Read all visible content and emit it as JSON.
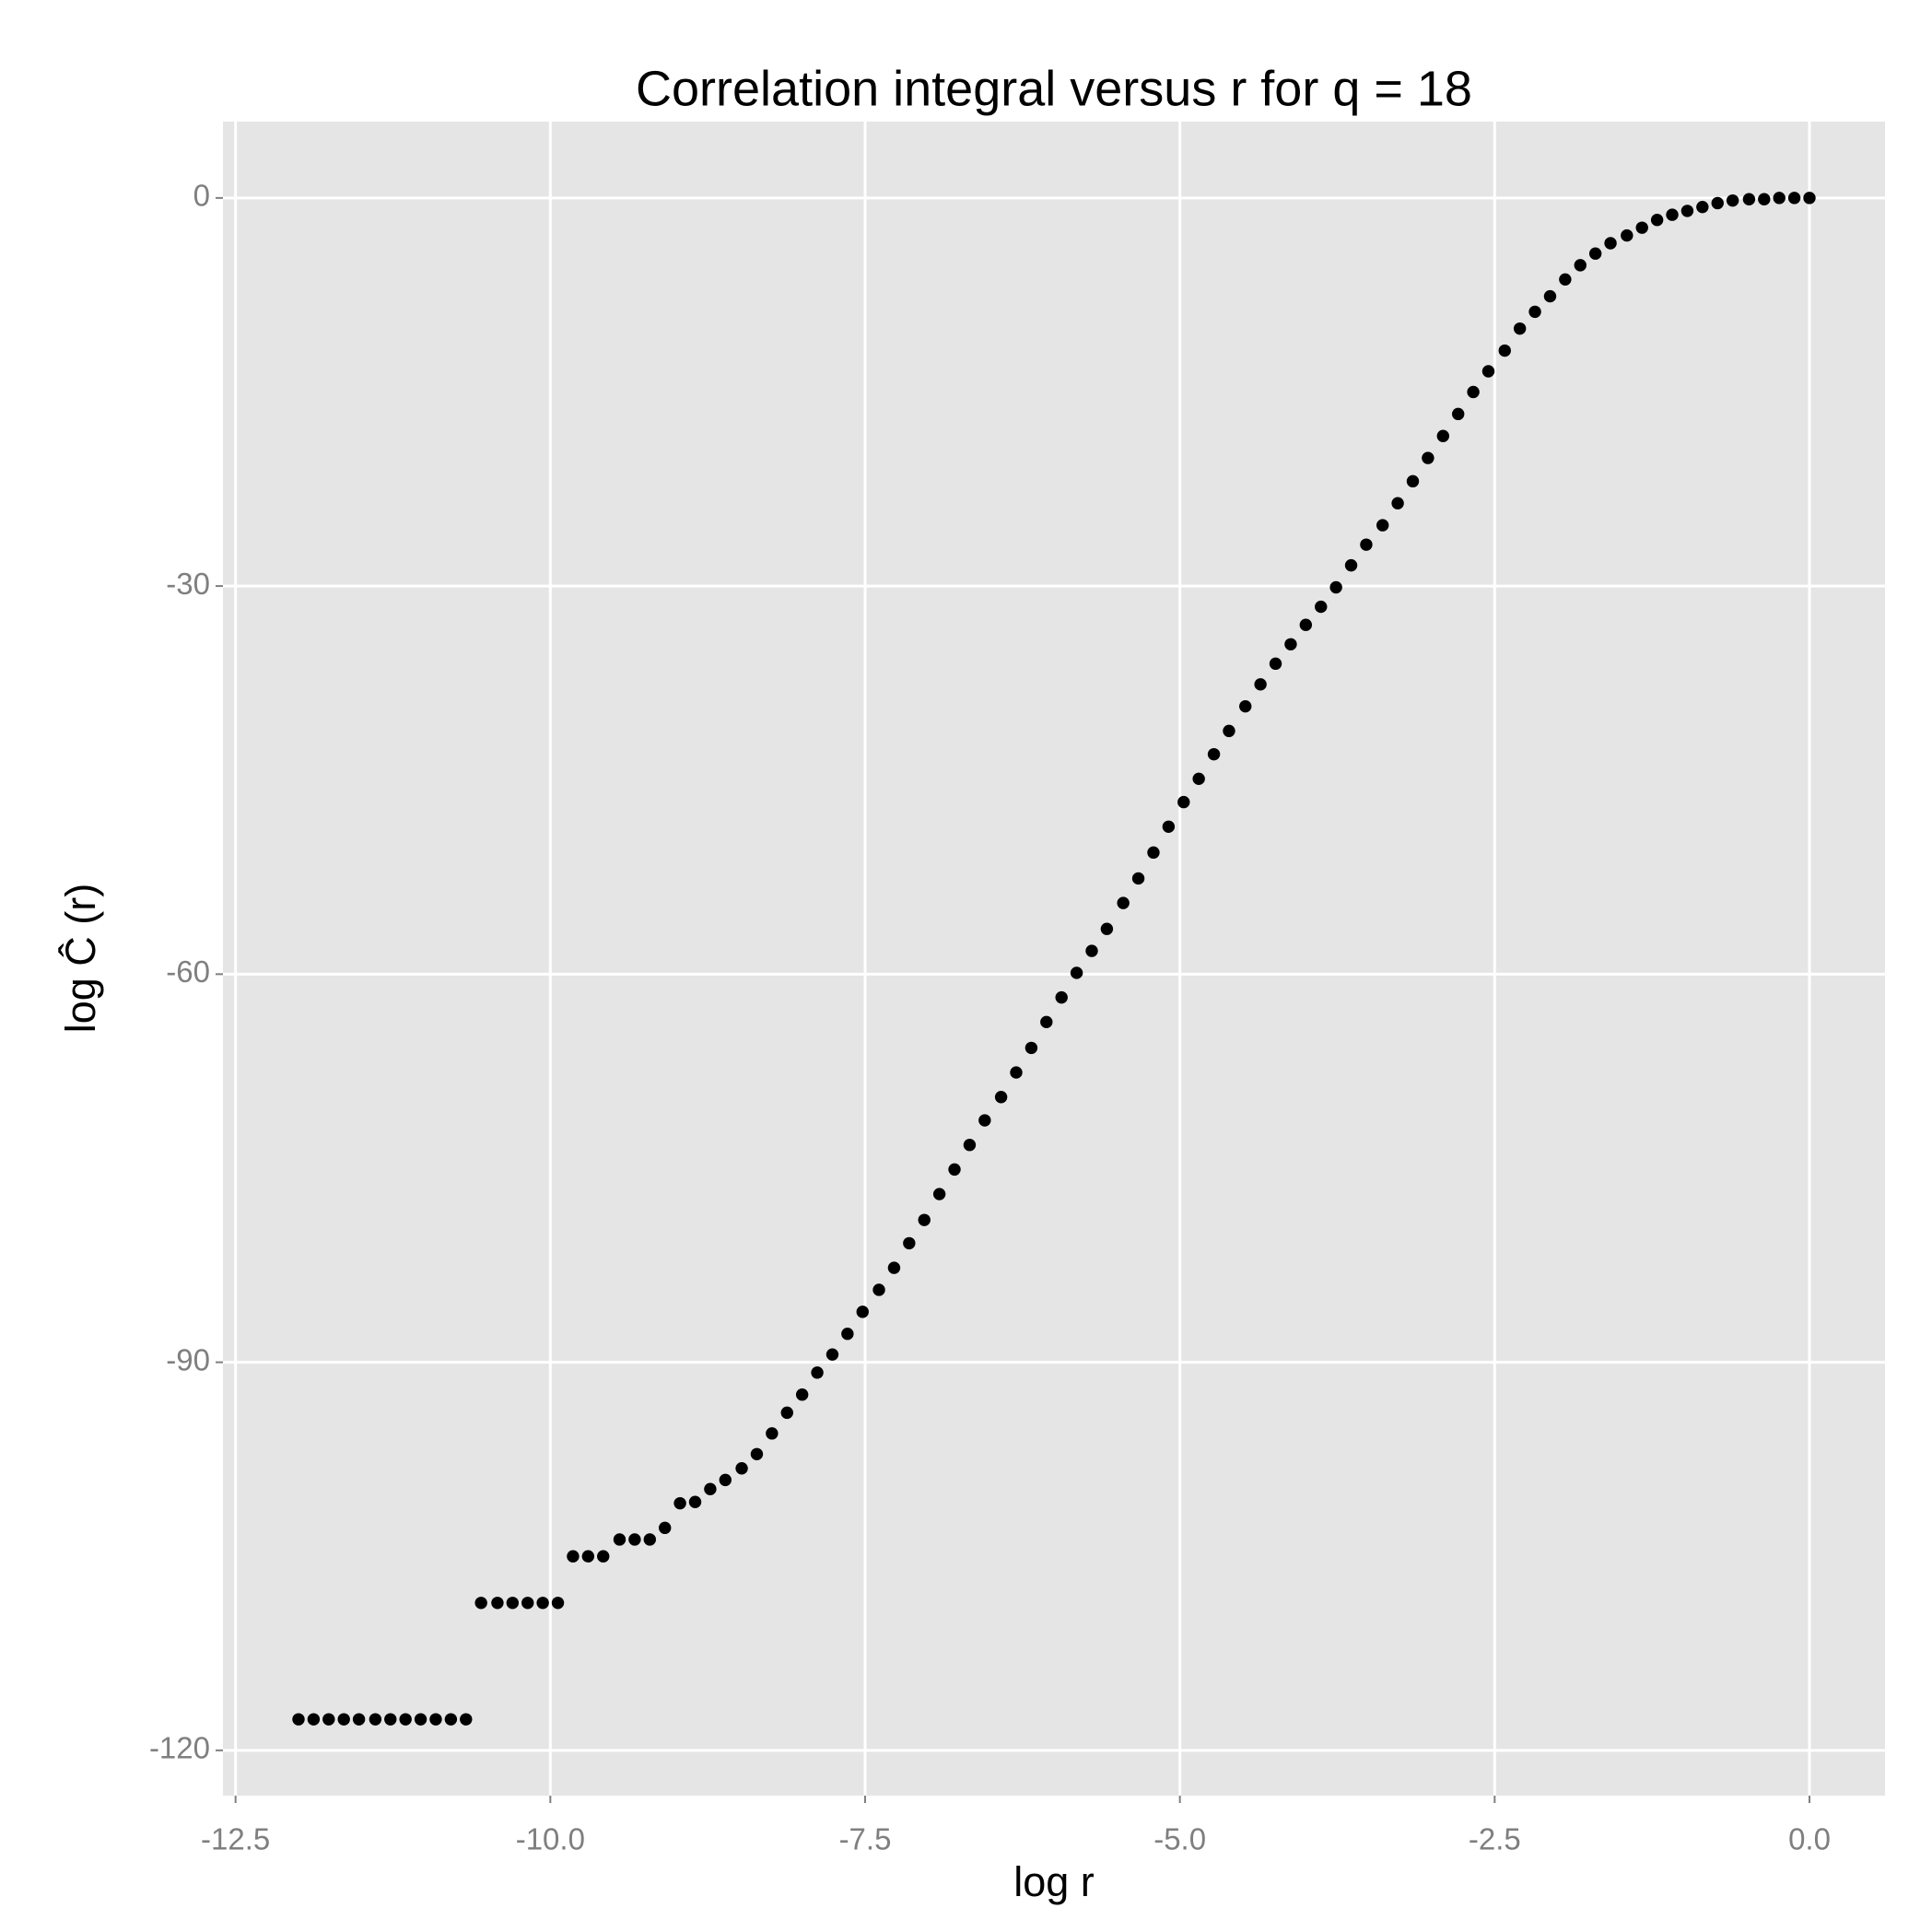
{
  "chart_data": {
    "type": "scatter",
    "title": "Correlation integral versus r for q = 18",
    "x_label": "log r",
    "y_label": "log Ĉ (r)",
    "color": "#000000",
    "grid": true,
    "xlim": [
      -12.6,
      0.6
    ],
    "ylim": [
      -123.5,
      5.9
    ],
    "xticks": [
      -12.5,
      {
        "value": -10,
        "label": "-10.0"
      },
      -7.5,
      {
        "value": -5,
        "label": "-5.0"
      },
      -2.5,
      {
        "value": 0,
        "label": "0.0"
      }
    ],
    "yticks": [
      0,
      -30,
      -60,
      -90,
      -120
    ],
    "x": [
      -12.0,
      -11.88,
      -11.76,
      -11.64,
      -11.52,
      -11.39,
      -11.27,
      -11.15,
      -11.03,
      -10.91,
      -10.79,
      -10.67,
      -10.55,
      -10.42,
      -10.3,
      -10.18,
      -10.06,
      -9.94,
      -9.82,
      -9.7,
      -9.58,
      -9.45,
      -9.33,
      -9.21,
      -9.09,
      -8.97,
      -8.85,
      -8.73,
      -8.61,
      -8.48,
      -8.36,
      -8.24,
      -8.12,
      -8.0,
      -7.88,
      -7.76,
      -7.64,
      -7.52,
      -7.39,
      -7.27,
      -7.15,
      -7.03,
      -6.91,
      -6.79,
      -6.67,
      -6.55,
      -6.42,
      -6.3,
      -6.18,
      -6.06,
      -5.94,
      -5.82,
      -5.7,
      -5.58,
      -5.45,
      -5.33,
      -5.21,
      -5.09,
      -4.97,
      -4.85,
      -4.73,
      -4.61,
      -4.48,
      -4.36,
      -4.24,
      -4.12,
      -4.0,
      -3.88,
      -3.76,
      -3.64,
      -3.52,
      -3.39,
      -3.27,
      -3.15,
      -3.03,
      -2.91,
      -2.79,
      -2.67,
      -2.55,
      -2.42,
      -2.3,
      -2.18,
      -2.06,
      -1.94,
      -1.82,
      -1.7,
      -1.58,
      -1.45,
      -1.33,
      -1.21,
      -1.09,
      -0.97,
      -0.85,
      -0.73,
      -0.61,
      -0.48,
      -0.36,
      -0.24,
      -0.12,
      0
    ],
    "values": [
      -117.6,
      -117.6,
      -117.6,
      -117.6,
      -117.6,
      -117.6,
      -117.6,
      -117.6,
      -117.6,
      -117.6,
      -117.6,
      -117.6,
      -108.6,
      -108.6,
      -108.6,
      -108.6,
      -108.6,
      -108.6,
      -105.0,
      -105.0,
      -105.0,
      -103.7,
      -103.7,
      -103.7,
      -102.8,
      -100.9,
      -100.8,
      -99.8,
      -99.1,
      -98.2,
      -97.1,
      -95.5,
      -93.9,
      -92.5,
      -90.8,
      -89.4,
      -87.8,
      -86.1,
      -84.4,
      -82.7,
      -80.8,
      -79.0,
      -77.0,
      -75.1,
      -73.2,
      -71.3,
      -69.5,
      -67.6,
      -65.7,
      -63.7,
      -61.8,
      -59.9,
      -58.2,
      -56.5,
      -54.5,
      -52.6,
      -50.6,
      -48.6,
      -46.7,
      -44.9,
      -43.0,
      -41.2,
      -39.3,
      -37.6,
      -36.0,
      -34.5,
      -33.0,
      -31.6,
      -30.1,
      -28.4,
      -26.8,
      -25.3,
      -23.6,
      -21.9,
      -20.1,
      -18.4,
      -16.7,
      -15.0,
      -13.4,
      -11.8,
      -10.1,
      -8.8,
      -7.6,
      -6.3,
      -5.2,
      -4.3,
      -3.5,
      -2.9,
      -2.3,
      -1.7,
      -1.3,
      -1.0,
      -0.7,
      -0.4,
      -0.2,
      -0.1,
      -0.1,
      0,
      0,
      0
    ]
  }
}
